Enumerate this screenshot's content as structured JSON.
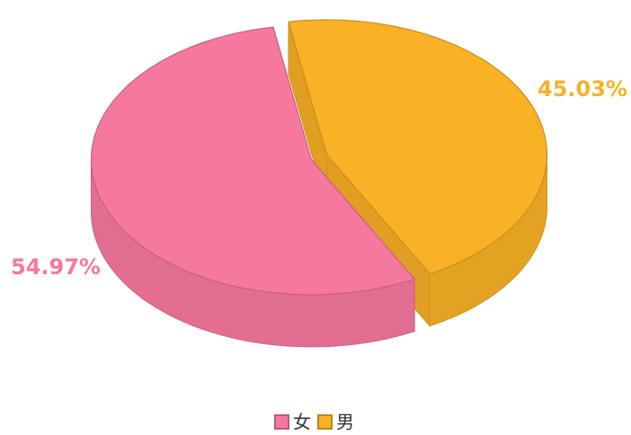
{
  "chart_data": {
    "type": "pie",
    "categories": [
      "女",
      "男"
    ],
    "values": [
      54.97,
      45.03
    ],
    "value_labels": [
      "54.97%",
      "45.03%"
    ],
    "colors": [
      "#f7789f",
      "#f9b126"
    ],
    "legend": "bottom"
  }
}
